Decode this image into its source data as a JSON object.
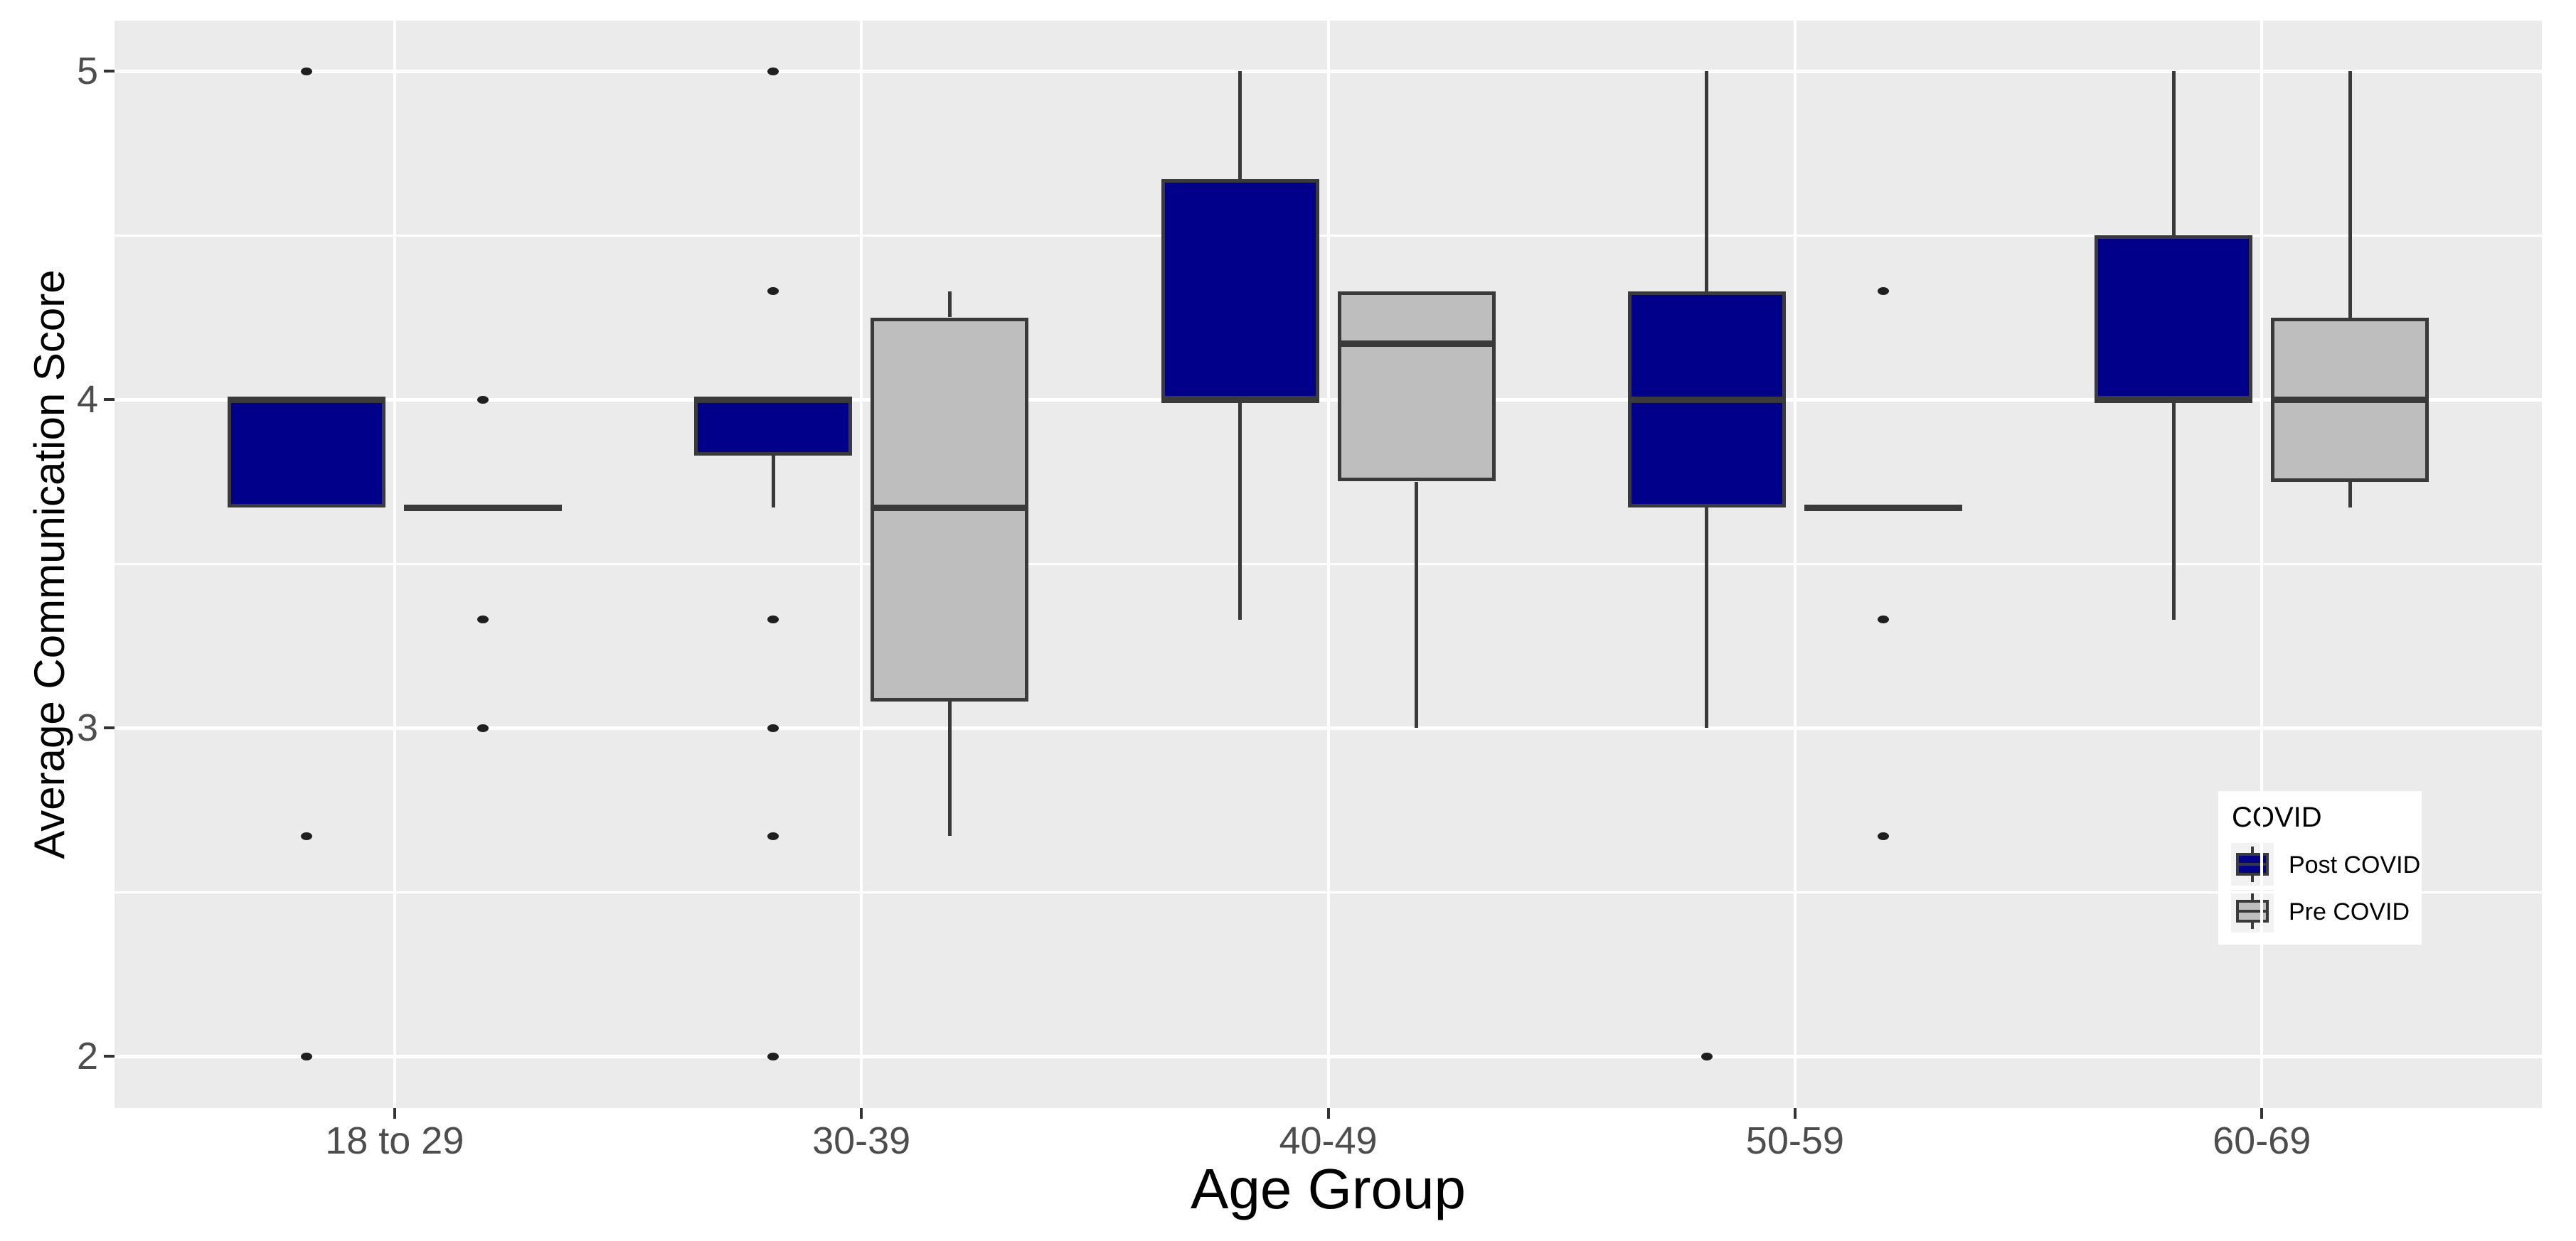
{
  "chart_data": {
    "type": "boxplot",
    "title": "",
    "xlabel": "Age Group",
    "ylabel": "Average Communication Score",
    "categories": [
      "18 to 29",
      "30-39",
      "40-49",
      "50-59",
      "60-69"
    ],
    "y_ticks": [
      2,
      3,
      4,
      5
    ],
    "y_minor_ticks": [
      2.5,
      3.5,
      4.5
    ],
    "ylim": [
      1.84,
      5.15
    ],
    "grid": true,
    "legend_position": "inside-right",
    "legend": {
      "title": "COVID",
      "entries": [
        {
          "label": "Post COVID",
          "color": "#00008B"
        },
        {
          "label": "Pre COVID",
          "color": "#BEBEBE"
        }
      ]
    },
    "series": [
      {
        "name": "Post COVID",
        "fill": "#00008B",
        "boxes": [
          {
            "category": "18 to 29",
            "q1": 3.67,
            "median": 4.0,
            "q3": 4.0,
            "whisker_low": 3.67,
            "whisker_high": 4.0,
            "outliers": [
              5.0,
              2.67,
              2.0
            ]
          },
          {
            "category": "30-39",
            "q1": 3.83,
            "median": 4.0,
            "q3": 4.0,
            "whisker_low": 3.67,
            "whisker_high": 4.0,
            "outliers": [
              5.0,
              4.33,
              3.33,
              3.0,
              2.67,
              2.0
            ]
          },
          {
            "category": "40-49",
            "q1": 4.0,
            "median": 4.0,
            "q3": 4.67,
            "whisker_low": 3.33,
            "whisker_high": 5.0,
            "outliers": []
          },
          {
            "category": "50-59",
            "q1": 3.67,
            "median": 4.0,
            "q3": 4.33,
            "whisker_low": 3.0,
            "whisker_high": 5.0,
            "outliers": [
              2.0
            ]
          },
          {
            "category": "60-69",
            "q1": 4.0,
            "median": 4.0,
            "q3": 4.5,
            "whisker_low": 3.33,
            "whisker_high": 5.0,
            "outliers": []
          }
        ]
      },
      {
        "name": "Pre COVID",
        "fill": "#BEBEBE",
        "boxes": [
          {
            "category": "18 to 29",
            "q1": 3.67,
            "median": 3.67,
            "q3": 3.67,
            "whisker_low": 3.67,
            "whisker_high": 3.67,
            "outliers": [
              4.0,
              3.33,
              3.0
            ]
          },
          {
            "category": "30-39",
            "q1": 3.08,
            "median": 3.67,
            "q3": 4.25,
            "whisker_low": 2.67,
            "whisker_high": 4.33,
            "outliers": []
          },
          {
            "category": "40-49",
            "q1": 3.75,
            "median": 4.17,
            "q3": 4.33,
            "whisker_low": 3.0,
            "whisker_high": 4.33,
            "outliers": []
          },
          {
            "category": "50-59",
            "q1": 3.67,
            "median": 3.67,
            "q3": 3.67,
            "whisker_low": 3.67,
            "whisker_high": 3.67,
            "outliers": [
              4.33,
              3.33,
              2.67
            ]
          },
          {
            "category": "60-69",
            "q1": 3.75,
            "median": 4.0,
            "q3": 4.25,
            "whisker_low": 3.67,
            "whisker_high": 5.0,
            "outliers": []
          }
        ]
      }
    ]
  },
  "colors": {
    "panel_background": "#EBEBEB",
    "grid": "#FFFFFF",
    "box_border": "#3A3A3A",
    "outlier": "#1F1F1F",
    "tick_label": "#4D4D4D",
    "axis_title": "#000000",
    "legend_background": "#FFFFFF",
    "legend_key_background": "#F2F2F2",
    "post_covid_fill": "#00008B",
    "pre_covid_fill": "#BEBEBE"
  }
}
